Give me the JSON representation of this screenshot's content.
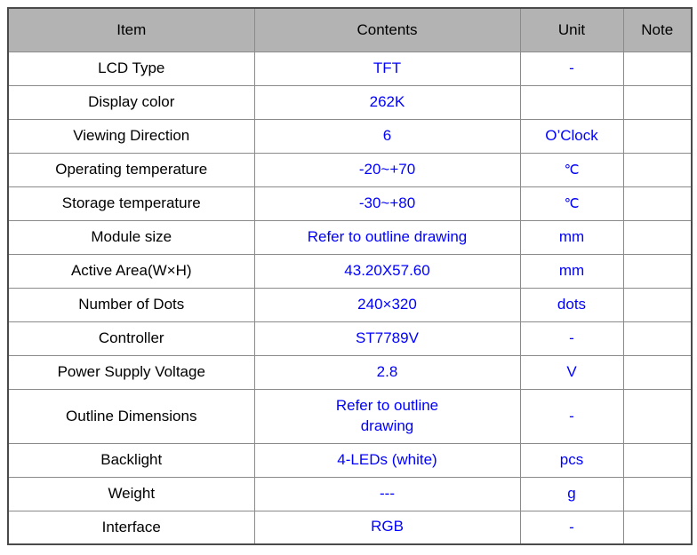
{
  "colors": {
    "header_bg": "#b3b3b3",
    "value_text": "#0000ff",
    "item_text": "#000000",
    "border": "#8a8a8a"
  },
  "table": {
    "columns": [
      {
        "label": "Item"
      },
      {
        "label": "Contents"
      },
      {
        "label": "Unit"
      },
      {
        "label": "Note"
      }
    ],
    "rows": [
      {
        "item": "LCD Type",
        "contents": "TFT",
        "unit": "-",
        "note": ""
      },
      {
        "item": "Display color",
        "contents": "262K",
        "unit": "",
        "note": ""
      },
      {
        "item": "Viewing Direction",
        "contents": "6",
        "unit": "O’Clock",
        "note": ""
      },
      {
        "item": "Operating temperature",
        "contents": "-20~+70",
        "unit": "℃",
        "note": ""
      },
      {
        "item": "Storage temperature",
        "contents": "-30~+80",
        "unit": "℃",
        "note": ""
      },
      {
        "item": "Module size",
        "contents": "Refer to outline drawing",
        "unit": "mm",
        "note": ""
      },
      {
        "item": "Active Area(W×H)",
        "contents": "43.20X57.60",
        "unit": "mm",
        "note": ""
      },
      {
        "item": "Number of Dots",
        "contents": "240×320",
        "unit": "dots",
        "note": ""
      },
      {
        "item": "Controller",
        "contents": "ST7789V",
        "unit": "-",
        "note": ""
      },
      {
        "item": "Power Supply Voltage",
        "contents": "2.8",
        "unit": "V",
        "note": ""
      },
      {
        "item": "Outline Dimensions",
        "contents": "Refer to outline\ndrawing",
        "unit": "-",
        "note": ""
      },
      {
        "item": "Backlight",
        "contents": "4-LEDs (white)",
        "unit": "pcs",
        "note": ""
      },
      {
        "item": "Weight",
        "contents": "---",
        "unit": "g",
        "note": ""
      },
      {
        "item": "Interface",
        "contents": "RGB",
        "unit": "-",
        "note": ""
      }
    ]
  }
}
